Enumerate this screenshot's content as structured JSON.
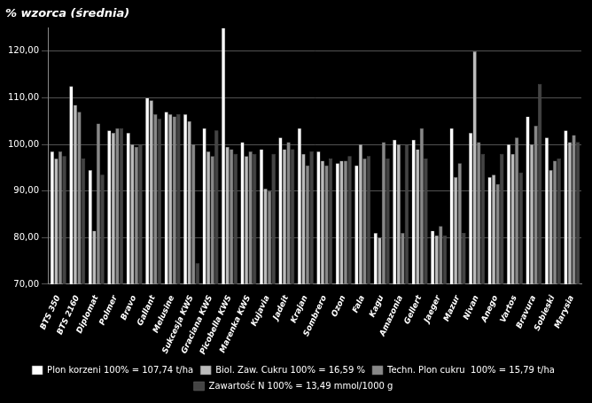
{
  "chart_data": {
    "type": "bar",
    "title": "% wzorca (średnia)",
    "categories": [
      "BTS 350",
      "BTS 2160",
      "Diplomat",
      "Polmer",
      "Bravo",
      "Gallant",
      "Melusine",
      "Sukcesja KWS",
      "Graciana KWS",
      "Picobella KWS",
      "Marenka KWS",
      "Kujavia",
      "Jadeit",
      "Krajan",
      "Sombrero",
      "Ozon",
      "Fala",
      "Kagu",
      "Amazonia",
      "Gellert",
      "Jaeger",
      "Mazur",
      "Nivan",
      "Anego",
      "Vartos",
      "Bravura",
      "Sobieski",
      "Marysia"
    ],
    "series": [
      {
        "name": "Plon korzeni 100% = 107,74 t/ha",
        "color": "#ffffff",
        "values": [
          98.5,
          112.5,
          94.5,
          103.0,
          102.5,
          110.0,
          107.0,
          106.5,
          103.5,
          125.0,
          100.5,
          99.0,
          101.5,
          103.5,
          98.5,
          96.0,
          95.5,
          81.0,
          101.0,
          101.0,
          81.5,
          103.5,
          102.5,
          93.0,
          100.0,
          106.0,
          101.5,
          103.0
        ]
      },
      {
        "name": "Biol. Zaw. Cukru 100% = 16,59 %",
        "color": "#bbbbbb",
        "values": [
          97.0,
          108.5,
          81.5,
          102.5,
          100.0,
          109.5,
          106.5,
          105.0,
          98.5,
          99.5,
          97.5,
          90.5,
          99.0,
          98.0,
          96.5,
          96.5,
          100.0,
          80.0,
          100.0,
          99.0,
          80.5,
          93.0,
          120.0,
          93.5,
          98.0,
          100.0,
          94.5,
          100.5
        ]
      },
      {
        "name": "Techn. Plon cukru  100% = 15,79 t/ha",
        "color": "#888888",
        "values": [
          98.5,
          107.0,
          104.5,
          103.5,
          99.5,
          106.5,
          106.0,
          100.0,
          97.5,
          99.0,
          98.5,
          90.0,
          100.5,
          95.5,
          95.5,
          96.5,
          97.0,
          100.5,
          81.0,
          103.5,
          82.5,
          96.0,
          100.5,
          91.5,
          101.5,
          104.0,
          96.5,
          102.0
        ]
      },
      {
        "name": "Zawartość N 100% = 13,49 mmol/1000 g",
        "color": "#444444",
        "values": [
          97.5,
          97.0,
          93.5,
          103.5,
          100.0,
          105.5,
          106.5,
          74.5,
          103.0,
          98.0,
          98.0,
          98.0,
          99.0,
          98.5,
          97.0,
          97.5,
          97.5,
          97.0,
          100.0,
          97.0,
          80.5,
          81.0,
          98.0,
          98.0,
          94.0,
          113.0,
          97.0,
          100.5
        ]
      }
    ],
    "ylim": [
      70,
      125
    ],
    "yticks": [
      {
        "value": 70,
        "label": "70,00"
      },
      {
        "value": 80,
        "label": "80,00"
      },
      {
        "value": 90,
        "label": "90,00"
      },
      {
        "value": 100,
        "label": "100,00"
      },
      {
        "value": 110,
        "label": "110,00"
      },
      {
        "value": 120,
        "label": "120,00"
      }
    ],
    "grid": true,
    "legend": "bottom"
  }
}
